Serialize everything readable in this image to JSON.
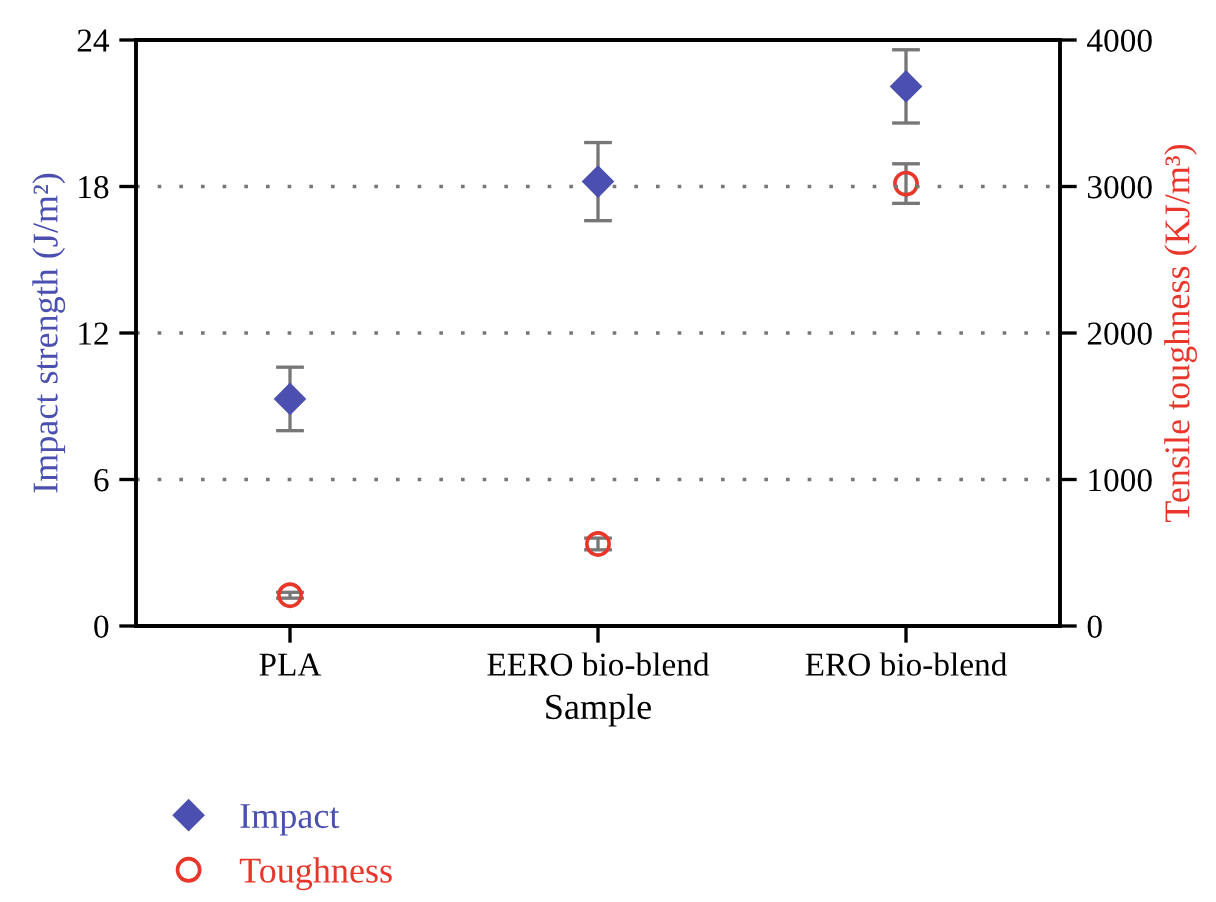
{
  "chart_data": {
    "type": "scatter",
    "xlabel": "Sample",
    "ylabel": "Impact strength (J/m²)",
    "y2label": "Tensile toughness (KJ/m³)",
    "categories": [
      "PLA",
      "EERO bio-blend",
      "ERO bio-blend"
    ],
    "series": [
      {
        "name": "Impact",
        "color": "#4a4fb0",
        "marker": "diamond",
        "values": [
          9.3,
          18.2,
          22.1
        ],
        "errors": [
          1.3,
          1.6,
          1.5
        ]
      },
      {
        "name": "Toughness",
        "color": "#e8362a",
        "marker": "circle",
        "axis": "y2",
        "values": [
          210,
          560,
          3020
        ],
        "errors": [
          20,
          40,
          135
        ]
      }
    ],
    "ylim": [
      0,
      24
    ],
    "yticks": [
      0,
      6,
      12,
      18,
      24
    ],
    "y2lim": [
      0,
      4000
    ],
    "y2ticks": [
      0,
      1000,
      2000,
      3000,
      4000
    ],
    "grid": "y",
    "legend": "bottom"
  }
}
